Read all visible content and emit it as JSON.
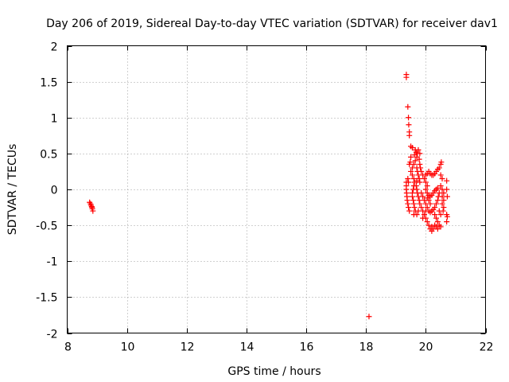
{
  "chart_data": {
    "type": "scatter",
    "title": "Day 206 of 2019, Sidereal Day-to-day VTEC variation (SDTVAR) for receiver dav1",
    "xlabel": "GPS time / hours",
    "ylabel": "SDTVAR / TECUs",
    "xlim": [
      8,
      22
    ],
    "ylim": [
      -2,
      2
    ],
    "xticks": [
      8,
      10,
      12,
      14,
      16,
      18,
      20,
      22
    ],
    "yticks": [
      2,
      1.5,
      1,
      0.5,
      0,
      -0.5,
      -1,
      -1.5,
      -2
    ],
    "grid": true,
    "marker": "+",
    "color": "#ff0000",
    "series": [
      {
        "name": "SDTVAR",
        "points": [
          [
            8.75,
            -0.18
          ],
          [
            8.78,
            -0.2
          ],
          [
            8.8,
            -0.22
          ],
          [
            8.82,
            -0.24
          ],
          [
            8.84,
            -0.27
          ],
          [
            8.86,
            -0.3
          ],
          [
            8.83,
            -0.25
          ],
          [
            18.1,
            -1.77
          ],
          [
            19.35,
            1.6
          ],
          [
            19.35,
            1.56
          ],
          [
            19.4,
            1.15
          ],
          [
            19.42,
            1.0
          ],
          [
            19.43,
            0.9
          ],
          [
            19.45,
            0.8
          ],
          [
            19.45,
            0.75
          ],
          [
            19.5,
            0.6
          ],
          [
            19.55,
            0.58
          ],
          [
            19.5,
            0.45
          ],
          [
            19.48,
            0.38
          ],
          [
            19.45,
            0.35
          ],
          [
            19.5,
            0.25
          ],
          [
            19.35,
            0.1
          ],
          [
            19.35,
            0.05
          ],
          [
            19.35,
            0.0
          ],
          [
            19.36,
            -0.05
          ],
          [
            19.37,
            -0.1
          ],
          [
            19.38,
            -0.15
          ],
          [
            19.4,
            -0.2
          ],
          [
            19.42,
            -0.25
          ],
          [
            19.45,
            -0.3
          ],
          [
            19.4,
            0.15
          ],
          [
            19.42,
            0.1
          ],
          [
            19.55,
            0.2
          ],
          [
            19.6,
            0.15
          ],
          [
            19.62,
            0.1
          ],
          [
            19.6,
            0.05
          ],
          [
            19.58,
            0.0
          ],
          [
            19.55,
            -0.05
          ],
          [
            19.55,
            -0.1
          ],
          [
            19.58,
            -0.15
          ],
          [
            19.6,
            -0.2
          ],
          [
            19.62,
            -0.25
          ],
          [
            19.65,
            -0.3
          ],
          [
            19.55,
            0.3
          ],
          [
            19.6,
            0.35
          ],
          [
            19.65,
            0.4
          ],
          [
            19.7,
            0.45
          ],
          [
            19.72,
            0.5
          ],
          [
            19.75,
            0.55
          ],
          [
            19.8,
            0.5
          ],
          [
            19.78,
            0.42
          ],
          [
            19.8,
            0.35
          ],
          [
            19.82,
            0.3
          ],
          [
            19.85,
            0.25
          ],
          [
            19.9,
            0.2
          ],
          [
            19.95,
            0.15
          ],
          [
            20.0,
            0.1
          ],
          [
            20.05,
            0.05
          ],
          [
            19.7,
            0.3
          ],
          [
            19.72,
            0.25
          ],
          [
            19.75,
            0.2
          ],
          [
            19.78,
            0.15
          ],
          [
            19.8,
            0.1
          ],
          [
            19.7,
            0.12
          ],
          [
            19.68,
            0.05
          ],
          [
            19.7,
            0.0
          ],
          [
            19.72,
            -0.05
          ],
          [
            19.75,
            -0.1
          ],
          [
            19.78,
            -0.15
          ],
          [
            19.8,
            -0.2
          ],
          [
            19.85,
            -0.25
          ],
          [
            19.9,
            -0.3
          ],
          [
            19.95,
            -0.35
          ],
          [
            20.0,
            -0.4
          ],
          [
            20.05,
            -0.45
          ],
          [
            20.1,
            -0.5
          ],
          [
            20.15,
            -0.55
          ],
          [
            20.2,
            -0.58
          ],
          [
            19.85,
            -0.05
          ],
          [
            19.9,
            -0.1
          ],
          [
            19.95,
            -0.15
          ],
          [
            20.0,
            -0.2
          ],
          [
            20.05,
            -0.25
          ],
          [
            20.1,
            -0.3
          ],
          [
            20.15,
            -0.32
          ],
          [
            20.2,
            -0.3
          ],
          [
            20.25,
            -0.28
          ],
          [
            20.3,
            -0.25
          ],
          [
            20.35,
            -0.2
          ],
          [
            20.4,
            -0.15
          ],
          [
            20.42,
            -0.1
          ],
          [
            20.45,
            -0.05
          ],
          [
            20.0,
            0.0
          ],
          [
            20.05,
            -0.05
          ],
          [
            20.1,
            -0.08
          ],
          [
            20.15,
            -0.1
          ],
          [
            20.2,
            -0.08
          ],
          [
            20.25,
            -0.05
          ],
          [
            20.3,
            -0.02
          ],
          [
            20.35,
            0.0
          ],
          [
            20.4,
            0.02
          ],
          [
            20.1,
            -0.15
          ],
          [
            20.15,
            -0.2
          ],
          [
            20.05,
            -0.12
          ],
          [
            20.0,
            0.2
          ],
          [
            20.05,
            0.22
          ],
          [
            20.1,
            0.25
          ],
          [
            20.15,
            0.22
          ],
          [
            20.2,
            0.2
          ],
          [
            20.25,
            0.2
          ],
          [
            20.3,
            0.22
          ],
          [
            20.35,
            0.25
          ],
          [
            20.4,
            0.28
          ],
          [
            20.45,
            0.3
          ],
          [
            20.5,
            0.35
          ],
          [
            20.52,
            0.38
          ],
          [
            20.5,
            0.2
          ],
          [
            20.55,
            0.15
          ],
          [
            20.5,
            0.05
          ],
          [
            20.55,
            0.0
          ],
          [
            20.6,
            -0.05
          ],
          [
            20.55,
            -0.1
          ],
          [
            20.6,
            -0.15
          ],
          [
            20.55,
            -0.2
          ],
          [
            20.6,
            -0.25
          ],
          [
            20.58,
            -0.3
          ],
          [
            20.3,
            -0.35
          ],
          [
            20.35,
            -0.4
          ],
          [
            20.4,
            -0.45
          ],
          [
            20.45,
            -0.5
          ],
          [
            20.5,
            -0.52
          ],
          [
            20.4,
            -0.55
          ],
          [
            20.35,
            -0.52
          ],
          [
            20.3,
            -0.5
          ],
          [
            20.25,
            -0.55
          ],
          [
            20.2,
            -0.52
          ],
          [
            20.45,
            -0.3
          ],
          [
            20.5,
            -0.35
          ],
          [
            20.7,
            0.12
          ],
          [
            20.7,
            0.0
          ],
          [
            20.72,
            -0.1
          ],
          [
            20.7,
            -0.35
          ],
          [
            20.72,
            -0.38
          ],
          [
            20.7,
            -0.45
          ],
          [
            19.6,
            -0.35
          ],
          [
            19.7,
            -0.35
          ],
          [
            19.75,
            -0.3
          ],
          [
            19.9,
            -0.4
          ],
          [
            20.0,
            -0.3
          ],
          [
            19.65,
            0.55
          ],
          [
            19.68,
            0.52
          ],
          [
            19.62,
            0.48
          ]
        ]
      }
    ]
  }
}
